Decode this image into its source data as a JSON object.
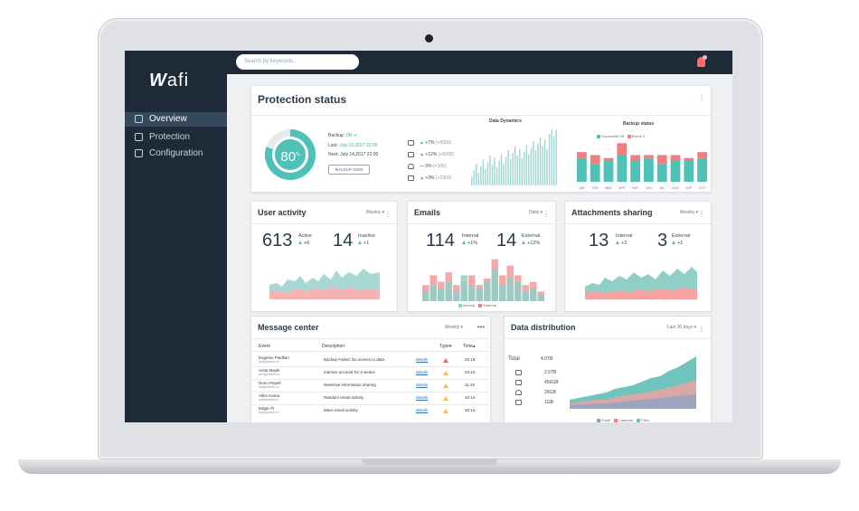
{
  "colors": {
    "teal": "#4fc1b7",
    "red": "#f08080",
    "navy": "#1f2a38",
    "active": "#35495c"
  },
  "app": {
    "logo": "afi"
  },
  "search": {
    "placeholder": "Search by keywords..."
  },
  "sidebar": {
    "items": [
      {
        "label": "Overview",
        "icon": "layers-icon",
        "active": true
      },
      {
        "label": "Protection",
        "icon": "copy-icon",
        "active": false
      },
      {
        "label": "Configuration",
        "icon": "puzzle-icon",
        "active": false
      }
    ]
  },
  "protection": {
    "title": "Protection status",
    "score": "80",
    "score_sup": "%",
    "backup_label": "Backup:",
    "backup_status": "OK",
    "last_label": "Last:",
    "last_value": "July 13,2017 22:00",
    "next_label": "Next:",
    "next_value": "July 14,2017 22:00",
    "backup_button": "BACKUP NOW",
    "dynamics_title": "Data Dynamics",
    "dynamics_rows": [
      {
        "icon": "mail-icon",
        "pct": "+7%",
        "count": "(+5000)"
      },
      {
        "icon": "folder-icon",
        "pct": "+12%",
        "count": "(+6000)"
      },
      {
        "icon": "person-icon",
        "pct": "0%",
        "count": "(+105)"
      },
      {
        "icon": "calendar-icon",
        "pct": "+3%",
        "count": "(+1300)"
      }
    ],
    "backup_status_title": "Backup status",
    "legend_success": "Successful 49",
    "legend_errors": "Errors 2",
    "months": [
      "JAN",
      "FEB",
      "MAR",
      "APR",
      "MAY",
      "JUN",
      "JUL",
      "AUG",
      "SEP",
      "OCT"
    ],
    "backup_success": [
      8,
      6,
      7,
      9,
      7,
      8,
      6,
      7,
      7,
      8
    ],
    "backup_errors": [
      2,
      3,
      1,
      4,
      2,
      1,
      3,
      2,
      1,
      2
    ]
  },
  "user_activity": {
    "title": "User activity",
    "period": "Weekly",
    "value1": "613",
    "label1": "Active",
    "delta1": "+6",
    "value2": "14",
    "label2": "Inactive",
    "delta2": "+1"
  },
  "emails": {
    "title": "Emails",
    "period": "Daily",
    "value1": "114",
    "label1": "Internal",
    "delta1": "+1%",
    "value2": "14",
    "label2": "External",
    "delta2": "+12%",
    "legend1": "Internal",
    "legend2": "External",
    "internal": [
      3,
      5,
      4,
      6,
      3,
      8,
      5,
      4,
      6,
      10,
      5,
      7,
      6,
      3,
      4,
      2
    ],
    "external": [
      5,
      8,
      6,
      9,
      5,
      6,
      8,
      5,
      7,
      13,
      8,
      11,
      8,
      5,
      6,
      3
    ]
  },
  "attachments": {
    "title": "Attachments sharing",
    "period": "Weekly",
    "value1": "13",
    "label1": "Internal",
    "delta1": "+2",
    "value2": "3",
    "label2": "External",
    "delta2": "+1"
  },
  "messages": {
    "title": "Message center",
    "period": "Weekly",
    "headers": {
      "event": "Event",
      "description": "Description",
      "type": "Type",
      "time": "Time"
    },
    "rows": [
      {
        "name": "Eugenio Piedlion",
        "email": "ep@ptamilo.io",
        "description": "Backup Failed: No access to data",
        "link": "details",
        "time": "02:19",
        "severity": "red"
      },
      {
        "name": "Anita Mayle",
        "email": "am@ptamilo.io",
        "description": "Inactive account for 3 weeks",
        "link": "details",
        "time": "03:13",
        "severity": "amber"
      },
      {
        "name": "Dono Pepell",
        "email": "dp@ptamilo.io",
        "description": "Selective information sharing",
        "link": "details",
        "time": "11:19",
        "severity": "amber"
      },
      {
        "name": "Allen Kama",
        "email": "ak@ptamilo.io",
        "description": "Random email activity",
        "link": "details",
        "time": "10:14",
        "severity": "amber"
      },
      {
        "name": "Edgar Pi",
        "email": "ep@ptamilo.io",
        "description": "Mass email activity",
        "link": "details",
        "time": "10:14",
        "severity": "amber"
      }
    ]
  },
  "distribution": {
    "title": "Data distribution",
    "period": "Last 30 days",
    "total_label": "Total",
    "total_value": "4.0TB",
    "rows": [
      {
        "icon": "mail-icon",
        "value": "2.5TB"
      },
      {
        "icon": "folder-icon",
        "value": "456GB"
      },
      {
        "icon": "person-icon",
        "value": "26GB"
      },
      {
        "icon": "calendar-icon",
        "value": "1GB"
      }
    ],
    "legend": [
      "Email",
      "Calendar",
      "Files"
    ]
  }
}
